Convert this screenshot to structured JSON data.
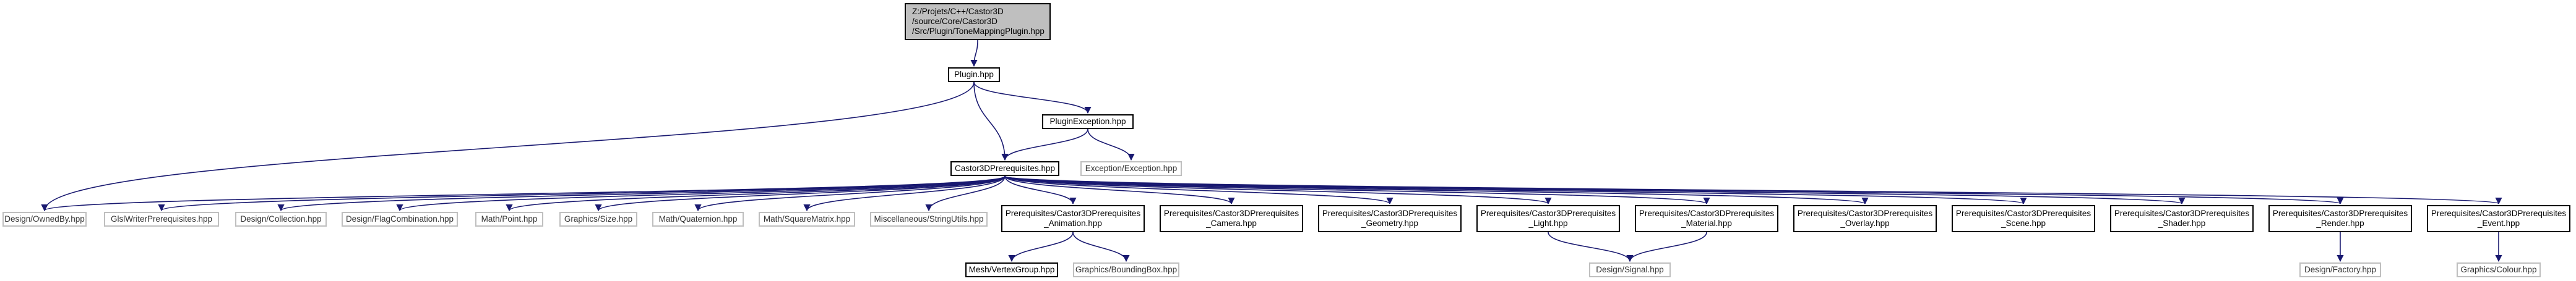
{
  "graph": {
    "nodes": [
      {
        "id": "root",
        "kind": "root",
        "lines": [
          "Z:/Projets/C++/Castor3D",
          "/source/Core/Castor3D",
          "/Src/Plugin/ToneMappingPlugin.hpp"
        ]
      },
      {
        "id": "plugin",
        "kind": "normal",
        "lines": [
          "Plugin.hpp"
        ]
      },
      {
        "id": "pluginexc",
        "kind": "normal",
        "lines": [
          "PluginException.hpp"
        ]
      },
      {
        "id": "excexc",
        "kind": "external",
        "lines": [
          "Exception/Exception.hpp"
        ]
      },
      {
        "id": "c3dprereq",
        "kind": "normal",
        "lines": [
          "Castor3DPrerequisites.hpp"
        ]
      },
      {
        "id": "ownedby",
        "kind": "external",
        "lines": [
          "Design/OwnedBy.hpp"
        ]
      },
      {
        "id": "glslwriter",
        "kind": "external",
        "lines": [
          "GlslWriterPrerequisites.hpp"
        ]
      },
      {
        "id": "collection",
        "kind": "external",
        "lines": [
          "Design/Collection.hpp"
        ]
      },
      {
        "id": "flagcomb",
        "kind": "external",
        "lines": [
          "Design/FlagCombination.hpp"
        ]
      },
      {
        "id": "point",
        "kind": "external",
        "lines": [
          "Math/Point.hpp"
        ]
      },
      {
        "id": "size",
        "kind": "external",
        "lines": [
          "Graphics/Size.hpp"
        ]
      },
      {
        "id": "quaternion",
        "kind": "external",
        "lines": [
          "Math/Quaternion.hpp"
        ]
      },
      {
        "id": "squarematrix",
        "kind": "external",
        "lines": [
          "Math/SquareMatrix.hpp"
        ]
      },
      {
        "id": "stringutils",
        "kind": "external",
        "lines": [
          "Miscellaneous/StringUtils.hpp"
        ]
      },
      {
        "id": "animation",
        "kind": "normal",
        "lines": [
          "Prerequisites/Castor3DPrerequisites",
          "_Animation.hpp"
        ]
      },
      {
        "id": "camera",
        "kind": "normal",
        "lines": [
          "Prerequisites/Castor3DPrerequisites",
          "_Camera.hpp"
        ]
      },
      {
        "id": "geometry",
        "kind": "normal",
        "lines": [
          "Prerequisites/Castor3DPrerequisites",
          "_Geometry.hpp"
        ]
      },
      {
        "id": "light",
        "kind": "normal",
        "lines": [
          "Prerequisites/Castor3DPrerequisites",
          "_Light.hpp"
        ]
      },
      {
        "id": "material",
        "kind": "normal",
        "lines": [
          "Prerequisites/Castor3DPrerequisites",
          "_Material.hpp"
        ]
      },
      {
        "id": "overlay",
        "kind": "normal",
        "lines": [
          "Prerequisites/Castor3DPrerequisites",
          "_Overlay.hpp"
        ]
      },
      {
        "id": "scene",
        "kind": "normal",
        "lines": [
          "Prerequisites/Castor3DPrerequisites",
          "_Scene.hpp"
        ]
      },
      {
        "id": "shader",
        "kind": "normal",
        "lines": [
          "Prerequisites/Castor3DPrerequisites",
          "_Shader.hpp"
        ]
      },
      {
        "id": "render",
        "kind": "normal",
        "lines": [
          "Prerequisites/Castor3DPrerequisites",
          "_Render.hpp"
        ]
      },
      {
        "id": "event",
        "kind": "normal",
        "lines": [
          "Prerequisites/Castor3DPrerequisites",
          "_Event.hpp"
        ]
      },
      {
        "id": "vertexgroup",
        "kind": "normal",
        "lines": [
          "Mesh/VertexGroup.hpp"
        ]
      },
      {
        "id": "boundingbox",
        "kind": "external",
        "lines": [
          "Graphics/BoundingBox.hpp"
        ]
      },
      {
        "id": "signal",
        "kind": "external",
        "lines": [
          "Design/Signal.hpp"
        ]
      },
      {
        "id": "factory",
        "kind": "external",
        "lines": [
          "Design/Factory.hpp"
        ]
      },
      {
        "id": "colour",
        "kind": "external",
        "lines": [
          "Graphics/Colour.hpp"
        ]
      }
    ],
    "edges": [
      [
        "root",
        "plugin"
      ],
      [
        "plugin",
        "pluginexc"
      ],
      [
        "plugin",
        "c3dprereq"
      ],
      [
        "plugin",
        "ownedby"
      ],
      [
        "pluginexc",
        "c3dprereq"
      ],
      [
        "pluginexc",
        "excexc"
      ],
      [
        "c3dprereq",
        "ownedby"
      ],
      [
        "c3dprereq",
        "glslwriter"
      ],
      [
        "c3dprereq",
        "collection"
      ],
      [
        "c3dprereq",
        "flagcomb"
      ],
      [
        "c3dprereq",
        "point"
      ],
      [
        "c3dprereq",
        "size"
      ],
      [
        "c3dprereq",
        "quaternion"
      ],
      [
        "c3dprereq",
        "squarematrix"
      ],
      [
        "c3dprereq",
        "stringutils"
      ],
      [
        "c3dprereq",
        "animation"
      ],
      [
        "c3dprereq",
        "camera"
      ],
      [
        "c3dprereq",
        "geometry"
      ],
      [
        "c3dprereq",
        "light"
      ],
      [
        "c3dprereq",
        "material"
      ],
      [
        "c3dprereq",
        "overlay"
      ],
      [
        "c3dprereq",
        "scene"
      ],
      [
        "c3dprereq",
        "shader"
      ],
      [
        "c3dprereq",
        "render"
      ],
      [
        "c3dprereq",
        "event"
      ],
      [
        "animation",
        "vertexgroup"
      ],
      [
        "animation",
        "boundingbox"
      ],
      [
        "light",
        "signal"
      ],
      [
        "material",
        "signal"
      ],
      [
        "render",
        "factory"
      ],
      [
        "event",
        "colour"
      ]
    ],
    "colors": {
      "edge": "#191970",
      "node_border": "#000000",
      "external_border": "#bfbfbf",
      "root_fill": "#bfbfbf"
    }
  }
}
